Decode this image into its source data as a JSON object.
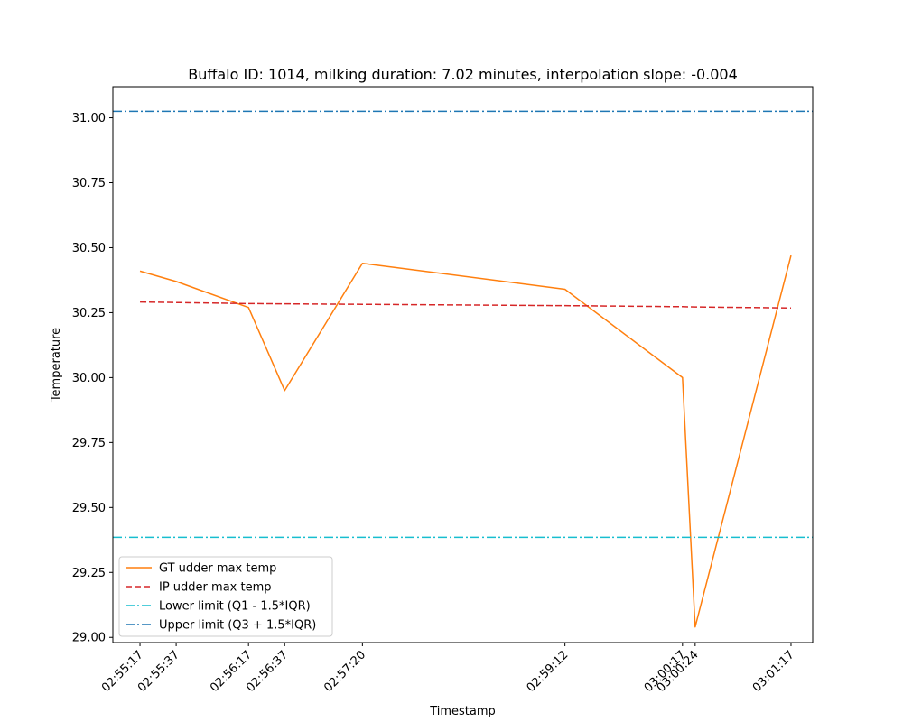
{
  "chart_data": {
    "type": "line",
    "title": "Buffalo ID: 1014, milking duration: 7.02 minutes, interpolation slope: -0.004",
    "xlabel": "Timestamp",
    "ylabel": "Temperature",
    "x": [
      "02:55:17",
      "02:55:37",
      "02:56:17",
      "02:56:37",
      "02:57:20",
      "02:59:12",
      "03:00:17",
      "03:00:24",
      "03:01:17"
    ],
    "x_seconds": [
      0,
      20,
      60,
      80,
      123,
      235,
      300,
      307,
      360
    ],
    "ylim": [
      28.98,
      31.12
    ],
    "yticks": [
      "29.00",
      "29.25",
      "29.50",
      "29.75",
      "30.00",
      "30.25",
      "30.50",
      "30.75",
      "31.00"
    ],
    "grid": false,
    "legend_position": "lower-left",
    "series": [
      {
        "name": "GT udder max temp",
        "color": "#ff7f0e",
        "style": "solid",
        "values": [
          30.41,
          30.37,
          30.27,
          29.95,
          30.44,
          30.34,
          30.0,
          29.04,
          30.47
        ]
      },
      {
        "name": "IP udder max temp",
        "color": "#d62728",
        "style": "dashed",
        "values": [
          30.291,
          30.289,
          30.285,
          30.284,
          30.282,
          30.277,
          30.273,
          30.272,
          30.268
        ]
      },
      {
        "name": "Lower limit (Q1 - 1.5*IQR)",
        "color": "#17becf",
        "style": "dashdot",
        "constant": 29.385
      },
      {
        "name": "Upper limit (Q3 + 1.5*IQR)",
        "color": "#1f77b4",
        "style": "dashdot",
        "constant": 31.025
      }
    ]
  }
}
